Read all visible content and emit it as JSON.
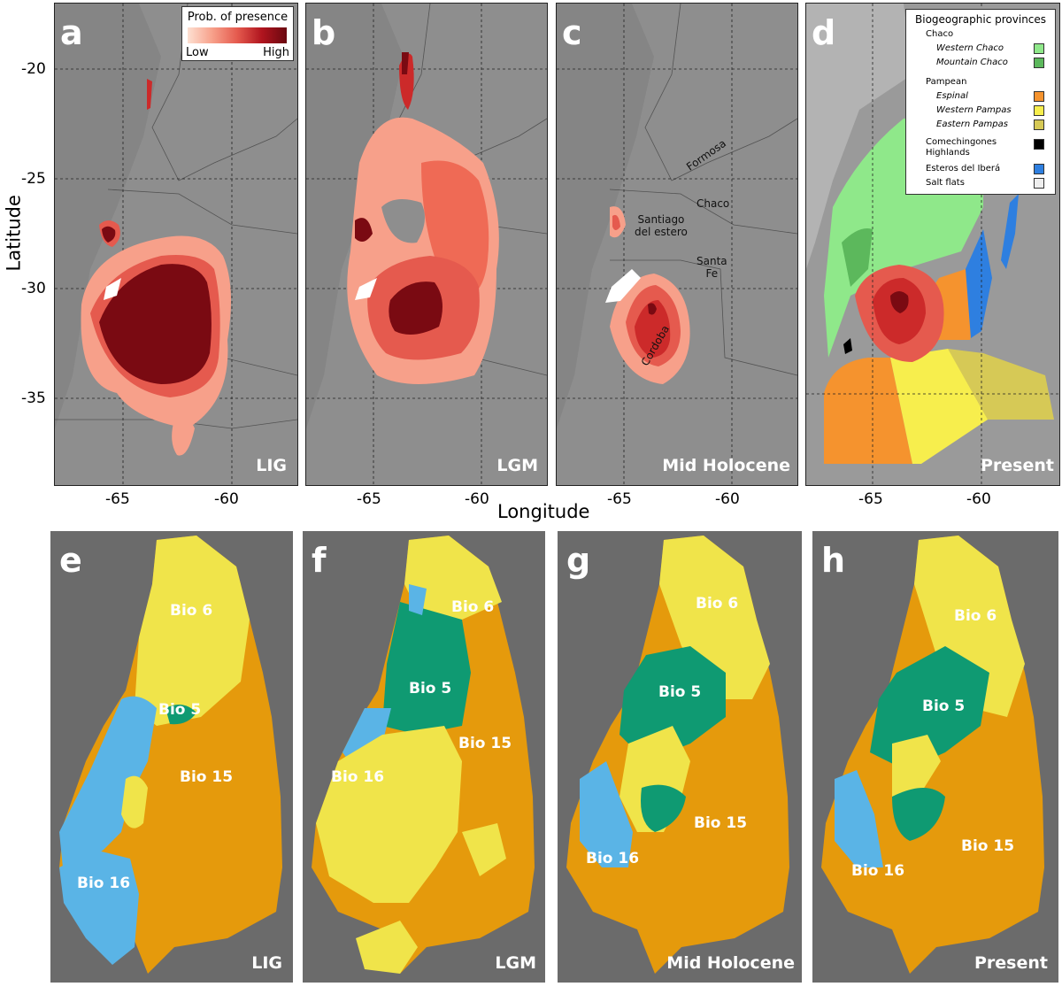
{
  "panels_top": [
    {
      "letter": "a",
      "period": "LIG"
    },
    {
      "letter": "b",
      "period": "LGM"
    },
    {
      "letter": "c",
      "period": "Mid Holocene"
    },
    {
      "letter": "d",
      "period": "Present"
    }
  ],
  "panels_bottom": [
    {
      "letter": "e",
      "period": "LIG",
      "labels": [
        "Bio 6",
        "Bio 5",
        "Bio 15",
        "Bio 16"
      ]
    },
    {
      "letter": "f",
      "period": "LGM",
      "labels": [
        "Bio 6",
        "Bio 5",
        "Bio 15",
        "Bio 16"
      ]
    },
    {
      "letter": "g",
      "period": "Mid Holocene",
      "labels": [
        "Bio 6",
        "Bio 5",
        "Bio 15",
        "Bio 16"
      ]
    },
    {
      "letter": "h",
      "period": "Present",
      "labels": [
        "Bio 6",
        "Bio 5",
        "Bio 15",
        "Bio 16"
      ]
    }
  ],
  "axes": {
    "y_title": "Latitude",
    "x_title": "Longitude",
    "y_ticks": [
      "-20",
      "-25",
      "-30",
      "-35"
    ],
    "x_ticks": [
      "-65",
      "-60"
    ]
  },
  "prob_legend": {
    "title": "Prob. of presence",
    "low": "Low",
    "high": "High"
  },
  "region_labels": {
    "formosa": "Formosa",
    "chaco": "Chaco",
    "santiago": "Santiago\ndel estero",
    "santa_fe": "Santa\nFe",
    "cordoba": "Cordoba"
  },
  "biogeo_legend": {
    "title": "Biogeographic provinces",
    "groups": [
      {
        "name": "Chaco",
        "items": [
          {
            "label": "Western Chaco",
            "color": "#8fe88a"
          },
          {
            "label": "Mountain Chaco",
            "color": "#5cb85c"
          }
        ]
      },
      {
        "name": "Pampean",
        "items": [
          {
            "label": "Espinal",
            "color": "#f5932e"
          },
          {
            "label": "Western Pampas",
            "color": "#f7ee4d"
          },
          {
            "label": "Eastern Pampas",
            "color": "#d6c956"
          }
        ]
      }
    ],
    "singles": [
      {
        "label": "Comechingones\nHighlands",
        "color": "#000000"
      },
      {
        "label": "Esteros del Iberá",
        "color": "#2e7fe0"
      },
      {
        "label": "Salt flats",
        "color": "#eeeeee"
      }
    ]
  },
  "colors": {
    "map_bg": "#8e8e8e",
    "prob_low": "#f7a08a",
    "prob_mid": "#e55a4e",
    "prob_high": "#cc2a2a",
    "prob_max": "#7a0a12",
    "bio6": "#f0e44a",
    "bio5": "#0f9a72",
    "bio15": "#e59a0c",
    "bio16": "#5ab4e6",
    "bio_bg": "#6b6b6b"
  }
}
